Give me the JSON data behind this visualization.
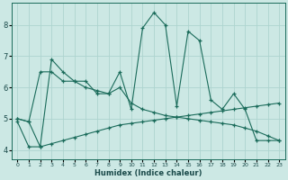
{
  "xlabel": "Humidex (Indice chaleur)",
  "bg_color": "#cce8e4",
  "grid_color": "#add4cf",
  "line_color": "#1a6b5a",
  "xlim": [
    -0.5,
    23.5
  ],
  "ylim": [
    3.7,
    8.7
  ],
  "xticks": [
    0,
    1,
    2,
    3,
    4,
    5,
    6,
    7,
    8,
    9,
    10,
    11,
    12,
    13,
    14,
    15,
    16,
    17,
    18,
    19,
    20,
    21,
    22,
    23
  ],
  "yticks": [
    4,
    5,
    6,
    7,
    8
  ],
  "line1_y": [
    5.0,
    4.9,
    4.1,
    6.9,
    6.5,
    6.2,
    6.2,
    5.8,
    5.8,
    6.5,
    5.3,
    7.9,
    8.4,
    8.0,
    5.4,
    7.8,
    7.5,
    5.6,
    5.3,
    5.8,
    5.3,
    4.3,
    4.3,
    4.3
  ],
  "line2_y": [
    4.9,
    4.1,
    4.1,
    4.2,
    4.3,
    4.4,
    4.5,
    4.6,
    4.7,
    4.8,
    4.85,
    4.9,
    4.95,
    5.0,
    5.05,
    5.1,
    5.15,
    5.2,
    5.25,
    5.3,
    5.35,
    5.4,
    5.45,
    5.5
  ],
  "line3_y": [
    5.0,
    4.9,
    6.5,
    6.5,
    6.2,
    6.2,
    6.0,
    5.9,
    5.8,
    6.0,
    5.5,
    5.3,
    5.2,
    5.1,
    5.05,
    5.0,
    4.95,
    4.9,
    4.85,
    4.8,
    4.7,
    4.6,
    4.45,
    4.3
  ]
}
